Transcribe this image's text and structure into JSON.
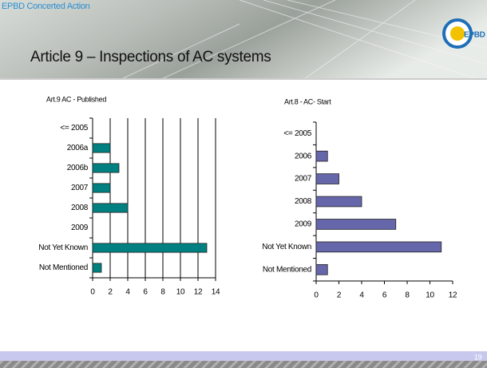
{
  "header": {
    "org": "EPBD Concerted Action",
    "title": "Article 9 – Inspections of AC systems",
    "logo": "EPBD",
    "page": "19"
  },
  "chart_data": [
    {
      "type": "hbar",
      "title": "Art.9 AC - Published",
      "categories": [
        "<= 2005",
        "2006a",
        "2006b",
        "2007",
        "2008",
        "2009",
        "Not Yet Known",
        "Not Mentioned"
      ],
      "values": [
        0,
        2,
        3,
        2,
        4,
        0,
        13,
        1
      ],
      "color": "#008080",
      "xlim": [
        0,
        14
      ],
      "xticks": [
        0,
        2,
        4,
        6,
        8,
        10,
        12,
        14
      ],
      "grid": true
    },
    {
      "type": "hbar",
      "title": "Art.8 - AC- Start",
      "categories": [
        "<= 2005",
        "2006",
        "2007",
        "2008",
        "2009",
        "Not Yet Known",
        "Not Mentioned"
      ],
      "values": [
        0,
        1,
        2,
        4,
        7,
        11,
        1
      ],
      "color": "#6666aa",
      "xlim": [
        0,
        12
      ],
      "xticks": [
        0,
        2,
        4,
        6,
        8,
        10,
        12
      ],
      "grid": false
    }
  ]
}
